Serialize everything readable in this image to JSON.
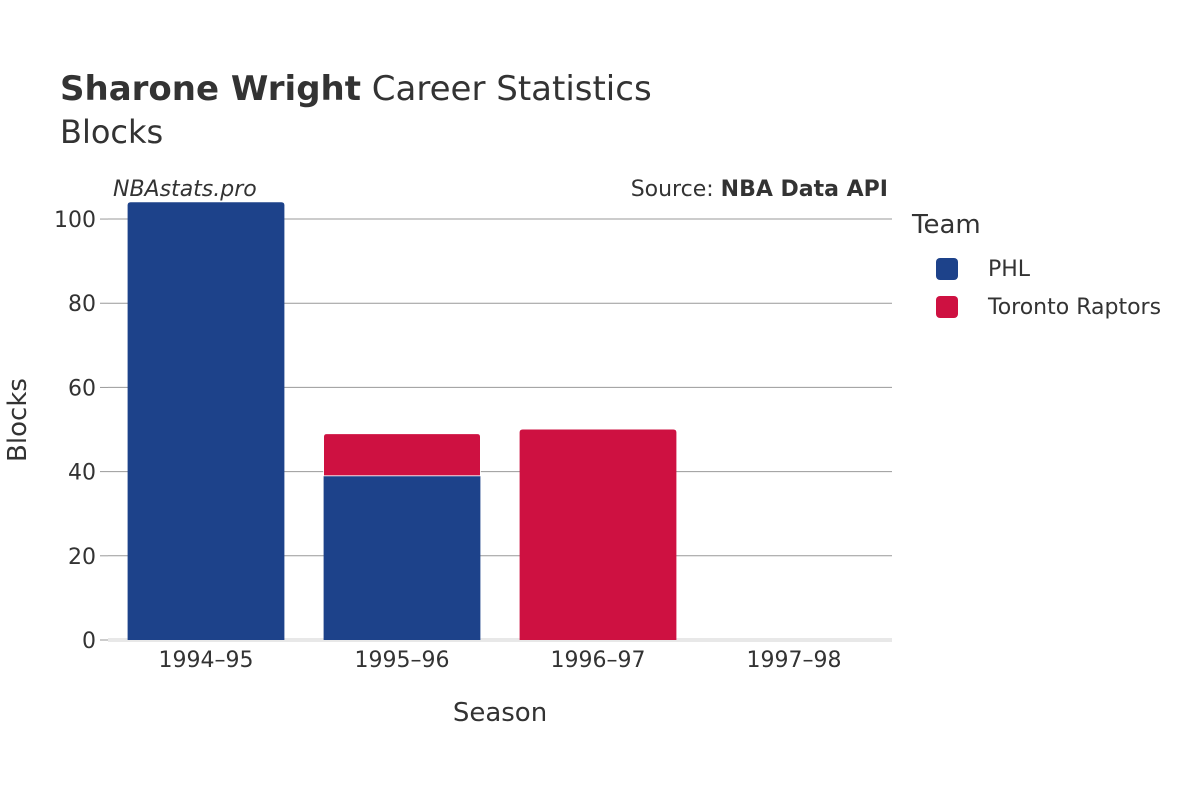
{
  "header": {
    "title_bold": "Sharone Wright",
    "title_rest": " Career Statistics",
    "subtitle": "Blocks",
    "watermark": "NBAstats.pro",
    "source_prefix": "Source: ",
    "source_name": "NBA Data API"
  },
  "legend": {
    "title": "Team"
  },
  "chart_data": {
    "type": "bar",
    "stacked": true,
    "title": "Sharone Wright Career Statistics",
    "subtitle": "Blocks",
    "xlabel": "Season",
    "ylabel": "Blocks",
    "categories": [
      "1994–95",
      "1995–96",
      "1996–97",
      "1997–98"
    ],
    "ylim": [
      0,
      105
    ],
    "yticks": [
      0,
      20,
      40,
      60,
      80,
      100
    ],
    "grid": true,
    "legend_position": "right",
    "series": [
      {
        "name": "PHL",
        "color": "#1d428a",
        "values": [
          104,
          39,
          0,
          0
        ]
      },
      {
        "name": "Toronto Raptors",
        "color": "#ce1141",
        "values": [
          0,
          10,
          50,
          0
        ]
      }
    ]
  }
}
